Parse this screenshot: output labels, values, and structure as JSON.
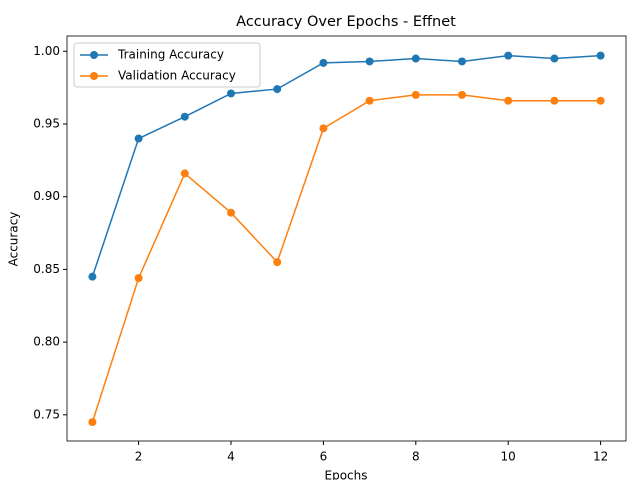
{
  "chart_data": {
    "type": "line",
    "title": "Accuracy Over Epochs - Effnet",
    "x_label": "Epochs",
    "y_label": "Accuracy",
    "x": [
      1,
      2,
      3,
      4,
      5,
      6,
      7,
      8,
      9,
      10,
      11,
      12
    ],
    "series": [
      {
        "name": "Training Accuracy",
        "color": "#1f77b4",
        "values": [
          0.845,
          0.94,
          0.955,
          0.971,
          0.974,
          0.992,
          0.993,
          0.995,
          0.993,
          0.997,
          0.995,
          0.997
        ]
      },
      {
        "name": "Validation Accuracy",
        "color": "#ff7f0e",
        "values": [
          0.745,
          0.844,
          0.916,
          0.889,
          0.855,
          0.947,
          0.966,
          0.97,
          0.97,
          0.966,
          0.966,
          0.966
        ]
      }
    ],
    "xlim": [
      0.45,
      12.55
    ],
    "ylim": [
      0.732,
      1.0105
    ],
    "xticks": [
      2,
      4,
      6,
      8,
      10,
      12
    ],
    "yticks": [
      0.75,
      {
        "value": 0.8,
        "label": "0.80"
      },
      0.85,
      {
        "value": 0.9,
        "label": "0.90"
      },
      0.95,
      {
        "value": 1,
        "label": "1.00"
      }
    ],
    "legend": "upper left",
    "grid": false
  }
}
